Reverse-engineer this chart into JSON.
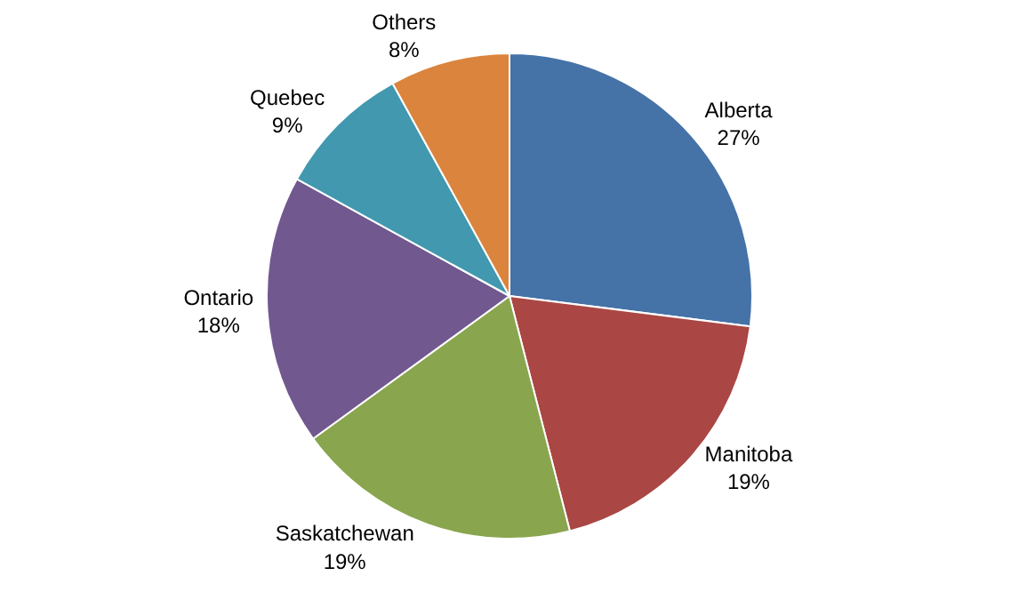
{
  "chart_data": {
    "type": "pie",
    "categories": [
      "Alberta",
      "Manitoba",
      "Saskatchewan",
      "Ontario",
      "Quebec",
      "Others"
    ],
    "values": [
      27,
      19,
      19,
      18,
      9,
      8
    ],
    "value_labels": [
      "27%",
      "19%",
      "19%",
      "18%",
      "9%",
      "8%"
    ],
    "colors": [
      "#4572a7",
      "#aa4643",
      "#89a54e",
      "#71588f",
      "#4198af",
      "#db843d"
    ],
    "legend": false
  }
}
